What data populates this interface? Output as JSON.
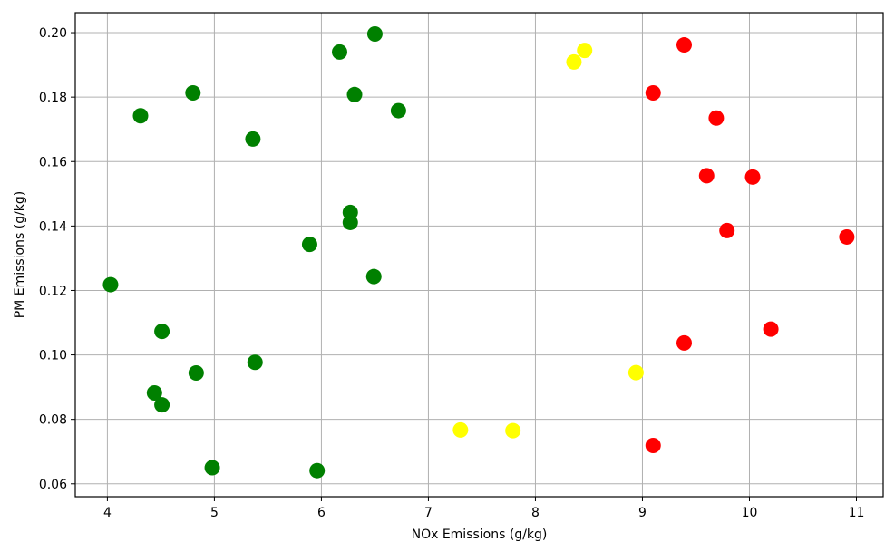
{
  "chart_data": {
    "type": "scatter",
    "title": "",
    "xlabel": "NOx Emissions (g/kg)",
    "ylabel": "PM Emissions (g/kg)",
    "xlim": [
      3.7,
      11.25
    ],
    "ylim": [
      0.056,
      0.2062
    ],
    "xticks": [
      4,
      5,
      6,
      7,
      8,
      9,
      10,
      11
    ],
    "yticks": [
      0.06,
      0.08,
      0.1,
      0.12,
      0.14,
      0.16,
      0.18,
      0.2
    ],
    "xtick_labels": [
      "4",
      "5",
      "6",
      "7",
      "8",
      "9",
      "10",
      "11"
    ],
    "ytick_labels": [
      "0.06",
      "0.08",
      "0.10",
      "0.12",
      "0.14",
      "0.16",
      "0.18",
      "0.20"
    ],
    "grid": true,
    "colors": {
      "green": "#008000",
      "yellow": "#ffff00",
      "red": "#ff0000"
    },
    "points": [
      {
        "x": 4.03,
        "y": 0.1218,
        "color": "green"
      },
      {
        "x": 4.31,
        "y": 0.1742,
        "color": "green"
      },
      {
        "x": 4.44,
        "y": 0.0882,
        "color": "green"
      },
      {
        "x": 4.51,
        "y": 0.1073,
        "color": "green"
      },
      {
        "x": 4.51,
        "y": 0.0845,
        "color": "green"
      },
      {
        "x": 4.8,
        "y": 0.1813,
        "color": "green"
      },
      {
        "x": 4.83,
        "y": 0.0944,
        "color": "green"
      },
      {
        "x": 4.98,
        "y": 0.065,
        "color": "green"
      },
      {
        "x": 5.36,
        "y": 0.167,
        "color": "green"
      },
      {
        "x": 5.38,
        "y": 0.0977,
        "color": "green"
      },
      {
        "x": 5.89,
        "y": 0.1343,
        "color": "green"
      },
      {
        "x": 5.96,
        "y": 0.0641,
        "color": "green"
      },
      {
        "x": 6.17,
        "y": 0.194,
        "color": "green"
      },
      {
        "x": 6.27,
        "y": 0.1442,
        "color": "green"
      },
      {
        "x": 6.27,
        "y": 0.1411,
        "color": "green"
      },
      {
        "x": 6.31,
        "y": 0.1808,
        "color": "green"
      },
      {
        "x": 6.49,
        "y": 0.1243,
        "color": "green"
      },
      {
        "x": 6.5,
        "y": 0.1996,
        "color": "green"
      },
      {
        "x": 6.72,
        "y": 0.1758,
        "color": "green"
      },
      {
        "x": 7.3,
        "y": 0.0767,
        "color": "yellow"
      },
      {
        "x": 7.79,
        "y": 0.0765,
        "color": "yellow"
      },
      {
        "x": 8.36,
        "y": 0.1909,
        "color": "yellow"
      },
      {
        "x": 8.46,
        "y": 0.1945,
        "color": "yellow"
      },
      {
        "x": 8.94,
        "y": 0.0945,
        "color": "yellow"
      },
      {
        "x": 9.1,
        "y": 0.1813,
        "color": "red"
      },
      {
        "x": 9.1,
        "y": 0.0719,
        "color": "red"
      },
      {
        "x": 9.39,
        "y": 0.1962,
        "color": "red"
      },
      {
        "x": 9.39,
        "y": 0.1037,
        "color": "red"
      },
      {
        "x": 9.6,
        "y": 0.1556,
        "color": "red"
      },
      {
        "x": 9.69,
        "y": 0.1735,
        "color": "red"
      },
      {
        "x": 9.79,
        "y": 0.1386,
        "color": "red"
      },
      {
        "x": 10.03,
        "y": 0.1552,
        "color": "red"
      },
      {
        "x": 10.2,
        "y": 0.108,
        "color": "red"
      },
      {
        "x": 10.91,
        "y": 0.1366,
        "color": "red"
      }
    ]
  }
}
